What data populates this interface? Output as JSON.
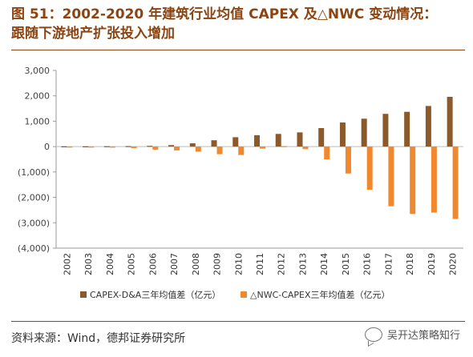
{
  "header": {
    "title_line1": "图 51：2002-2020 年建筑行业均值 CAPEX 及△NWC 变动情况：",
    "title_line2": "跟随下游地产扩张投入增加"
  },
  "footer": {
    "source": "资料来源：Wind，德邦证券研究所",
    "watermark": "吴开达策略知行"
  },
  "colors": {
    "series1": "#8B5A2B",
    "series2": "#F0882F",
    "title": "#8B4513"
  },
  "chart_data": {
    "type": "bar",
    "categories": [
      "2002",
      "2003",
      "2004",
      "2005",
      "2006",
      "2007",
      "2008",
      "2009",
      "2010",
      "2011",
      "2012",
      "2013",
      "2014",
      "2015",
      "2016",
      "2017",
      "2018",
      "2019",
      "2020"
    ],
    "series": [
      {
        "name": "CAPEX-D&A三年均值差（亿元）",
        "color": "#8B5A2B",
        "values": [
          10,
          10,
          15,
          20,
          30,
          60,
          130,
          250,
          370,
          450,
          500,
          560,
          730,
          950,
          1100,
          1290,
          1370,
          1600,
          1960
        ]
      },
      {
        "name": "△NWC-CAPEX三年均值差（亿元）",
        "color": "#F0882F",
        "values": [
          -20,
          -30,
          -40,
          -60,
          -120,
          -150,
          -200,
          -300,
          -330,
          -80,
          0,
          -100,
          -500,
          -1060,
          -1700,
          -2350,
          -2650,
          -2600,
          -2850
        ]
      }
    ],
    "ylim": [
      -4000,
      3000
    ],
    "yticks": [
      3000,
      2000,
      1000,
      0,
      -1000,
      -2000,
      -3000,
      -4000
    ],
    "ytick_labels": [
      "3,000",
      "2,000",
      "1,000",
      "0",
      "(1,000)",
      "(2,000)",
      "(3,000)",
      "(4,000)"
    ],
    "legend_position": "bottom",
    "grid": false
  }
}
